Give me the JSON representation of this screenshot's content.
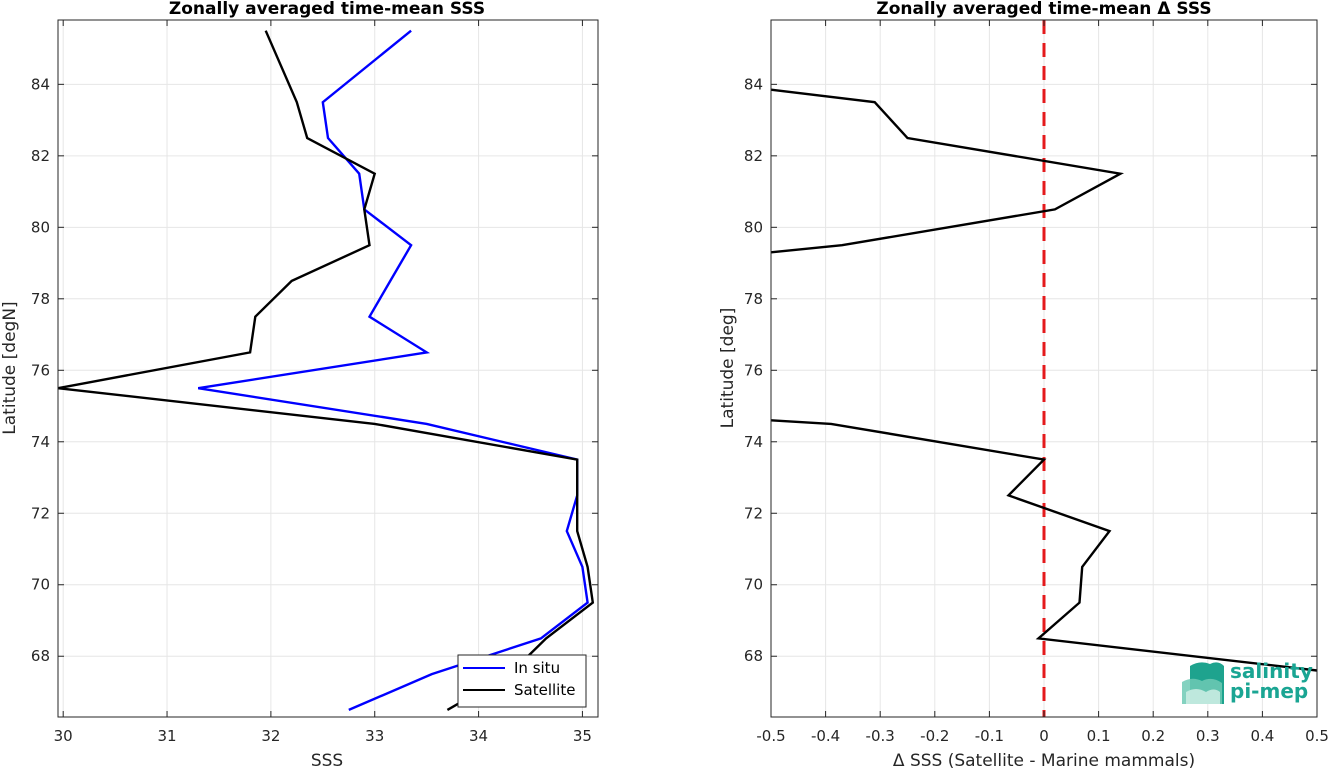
{
  "charts": [
    {
      "title": "Zonally averaged time-mean SSS",
      "xlabel": "SSS",
      "ylabel": "Latitude [degN]",
      "xticks": [
        "30",
        "31",
        "32",
        "33",
        "34",
        "35"
      ],
      "yticks": [
        "68",
        "70",
        "72",
        "74",
        "76",
        "78",
        "80",
        "82",
        "84"
      ],
      "legend": [
        "In situ",
        "Satellite"
      ]
    },
    {
      "title": "Zonally averaged time-mean Δ SSS",
      "xlabel": "Δ SSS (Satellite - Marine mammals)",
      "ylabel": "Latitude [deg]",
      "xticks": [
        "-0.5",
        "-0.4",
        "-0.3",
        "-0.2",
        "-0.1",
        "0",
        "0.1",
        "0.2",
        "0.3",
        "0.4",
        "0.5"
      ],
      "yticks": [
        "68",
        "70",
        "72",
        "74",
        "76",
        "78",
        "80",
        "82",
        "84"
      ]
    }
  ],
  "logo": {
    "line1": "salinity",
    "line2": "pi-mep"
  },
  "chart_data": [
    {
      "type": "line",
      "title": "Zonally averaged time-mean SSS",
      "xlabel": "SSS",
      "ylabel": "Latitude [degN]",
      "xlim": [
        29.95,
        35.15
      ],
      "ylim": [
        66.3,
        85.8
      ],
      "grid": true,
      "legend_position": "bottom-right",
      "series": [
        {
          "name": "In situ",
          "color": "#0000ff",
          "x": [
            32.75,
            33.55,
            34.6,
            35.05,
            35.0,
            34.85,
            34.95,
            34.95,
            33.5,
            31.3,
            33.5,
            32.95,
            33.15,
            33.35,
            32.9,
            32.85,
            32.55,
            32.5,
            33.35
          ],
          "y": [
            66.5,
            67.5,
            68.5,
            69.5,
            70.5,
            71.5,
            72.5,
            73.5,
            74.5,
            75.5,
            76.5,
            77.5,
            78.5,
            79.5,
            80.5,
            81.5,
            82.5,
            83.5,
            85.5
          ]
        },
        {
          "name": "Satellite",
          "color": "#000000",
          "x": [
            33.7,
            34.3,
            34.65,
            35.1,
            35.05,
            34.95,
            34.95,
            34.95,
            33.0,
            29.95,
            31.8,
            31.85,
            32.2,
            32.95,
            32.9,
            33.0,
            32.35,
            32.25,
            31.95
          ],
          "y": [
            66.5,
            67.5,
            68.5,
            69.5,
            70.5,
            71.5,
            72.5,
            73.5,
            74.5,
            75.5,
            76.5,
            77.5,
            78.5,
            79.5,
            80.5,
            81.5,
            82.5,
            83.5,
            85.5
          ]
        }
      ]
    },
    {
      "type": "line",
      "title": "Zonally averaged time-mean Δ SSS",
      "xlabel": "Δ SSS (Satellite - Marine mammals)",
      "ylabel": "Latitude [deg]",
      "xlim": [
        -0.5,
        0.5
      ],
      "ylim": [
        66.3,
        85.8
      ],
      "grid": true,
      "series": [
        {
          "color": "#000000",
          "x": [
            0.5,
            -0.01,
            0.065,
            0.07,
            0.12,
            -0.065,
            0.0,
            -0.39,
            -0.5
          ],
          "y": [
            67.6,
            68.5,
            69.5,
            70.5,
            71.5,
            72.5,
            73.5,
            74.5,
            74.6
          ]
        },
        {
          "color": "#000000",
          "x": [
            -0.5,
            -0.37,
            0.02,
            0.14,
            -0.25,
            -0.31,
            -0.5
          ],
          "y": [
            79.3,
            79.5,
            80.5,
            81.5,
            82.5,
            83.5,
            83.85
          ]
        }
      ],
      "reference_line": {
        "x": 0,
        "color": "#e41a1c",
        "style": "dashed"
      }
    }
  ]
}
